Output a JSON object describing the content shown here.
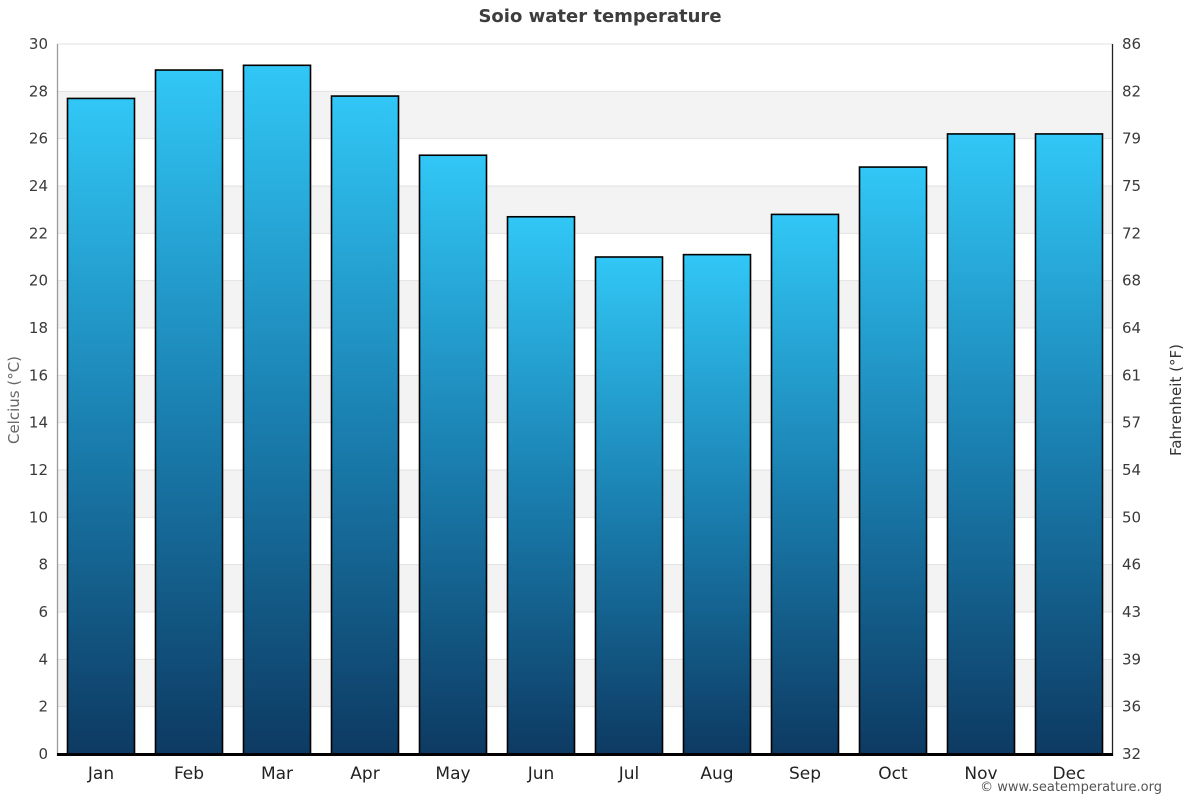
{
  "chart_data": {
    "type": "bar",
    "title": "Soio water temperature",
    "categories": [
      "Jan",
      "Feb",
      "Mar",
      "Apr",
      "May",
      "Jun",
      "Jul",
      "Aug",
      "Sep",
      "Oct",
      "Nov",
      "Dec"
    ],
    "values": [
      27.7,
      28.9,
      29.1,
      27.8,
      25.3,
      22.7,
      21.0,
      21.1,
      22.8,
      24.8,
      26.2,
      26.2
    ],
    "xlabel": "",
    "ylabel_left": "Celcius (°C)",
    "ylabel_right": "Fahrenheit (°F)",
    "ylim": [
      0,
      30
    ],
    "celsius_ticks": [
      0,
      2,
      4,
      6,
      8,
      10,
      12,
      14,
      16,
      18,
      20,
      22,
      24,
      26,
      28,
      30
    ],
    "fahrenheit_tick_labels": [
      "32",
      "36",
      "39",
      "43",
      "46",
      "50",
      "54",
      "57",
      "61",
      "64",
      "68",
      "72",
      "75",
      "79",
      "82",
      "86"
    ],
    "grid": "horizontal alternating bands every 2°C",
    "legend": "none",
    "colors": {
      "bar_gradient_top": "#31c7f6",
      "bar_gradient_mid": "#1a80b1",
      "bar_gradient_bottom": "#0d3a62",
      "bar_border": "#000000",
      "band_fill": "#f3f3f3",
      "gridline": "#e2e2e2",
      "axis_left": "#9b9b9b",
      "axis_right": "#222222",
      "axis_bottom": "#000000",
      "tick_label": "#3a3a3a",
      "month_label": "#222222"
    }
  },
  "footer": {
    "copyright": "© www.seatemperature.org"
  }
}
